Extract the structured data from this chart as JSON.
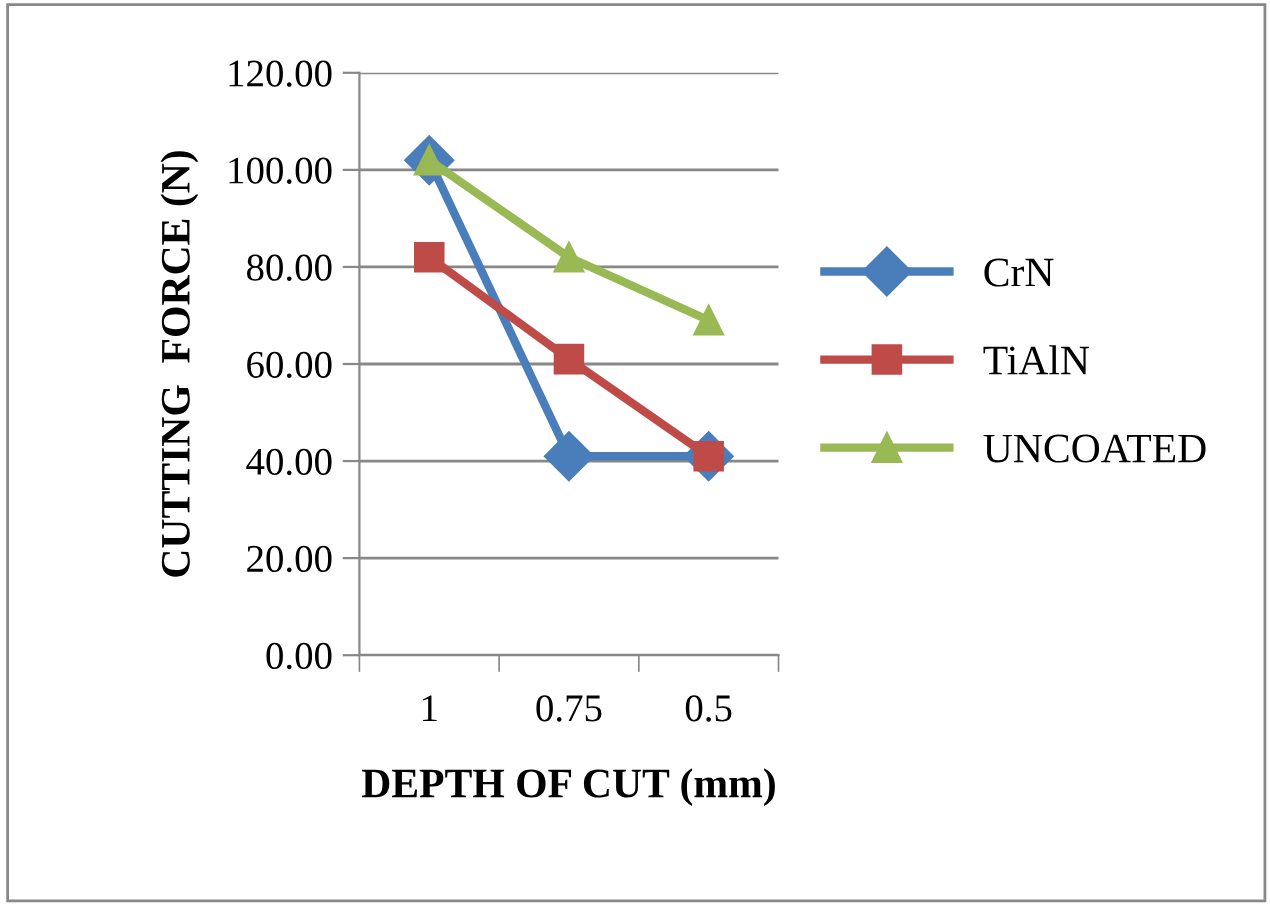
{
  "chart_data": {
    "type": "line",
    "xlabel": "DEPTH OF CUT (mm)",
    "ylabel": "CUTTING  FORCE (N)",
    "categories": [
      "1",
      "0.75",
      "0.5"
    ],
    "series": [
      {
        "name": "CrN",
        "color": "#4a7ebb",
        "marker": "diamond",
        "values": [
          102,
          41,
          41
        ]
      },
      {
        "name": "TiAlN",
        "color": "#be4b48",
        "marker": "square",
        "values": [
          82,
          61,
          41
        ]
      },
      {
        "name": "UNCOATED",
        "color": "#98b954",
        "marker": "triangle",
        "values": [
          102,
          82,
          69
        ]
      }
    ],
    "ylim": [
      0,
      120
    ],
    "yticks": [
      {
        "value": 0,
        "label": "0.00"
      },
      {
        "value": 20,
        "label": "20.00"
      },
      {
        "value": 40,
        "label": "40.00"
      },
      {
        "value": 60,
        "label": "60.00"
      },
      {
        "value": 80,
        "label": "80.00"
      },
      {
        "value": 100,
        "label": "100.00"
      },
      {
        "value": 120,
        "label": "120.00"
      }
    ],
    "grid": "y",
    "legend": "right",
    "line_style": "solid"
  }
}
